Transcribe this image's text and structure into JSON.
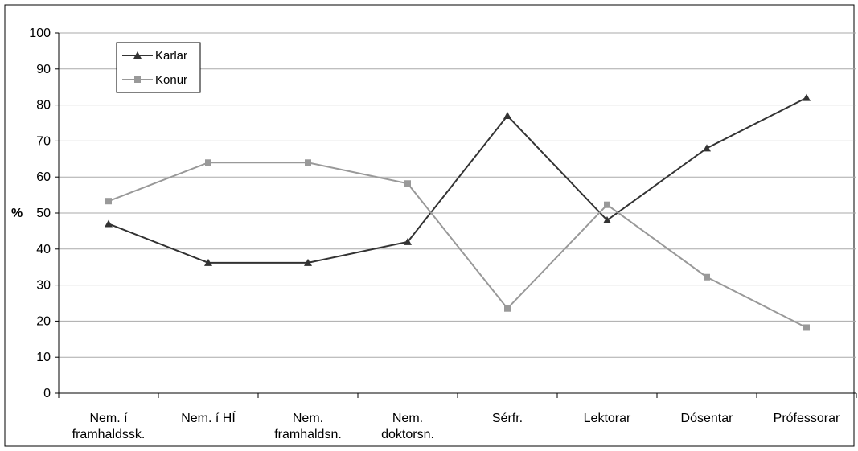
{
  "chart_data": {
    "type": "line",
    "title": "",
    "xlabel": "",
    "ylabel": "%",
    "ylim": [
      0,
      100
    ],
    "yticks": [
      0,
      10,
      20,
      30,
      40,
      50,
      60,
      70,
      80,
      90,
      100
    ],
    "grid": true,
    "legend_position": "top-left",
    "categories": [
      [
        "Nem. í",
        "framhaldssk."
      ],
      [
        "Nem. í HÍ"
      ],
      [
        "Nem.",
        "framhaldsn."
      ],
      [
        "Nem.",
        "doktorsn."
      ],
      [
        "Sérfr."
      ],
      [
        "Lektorar"
      ],
      [
        "Dósentar"
      ],
      [
        "Prófessorar"
      ]
    ],
    "series": [
      {
        "name": "Karlar",
        "values": [
          47,
          36.2,
          36.2,
          42,
          77,
          48,
          68,
          82
        ],
        "color": "#333333",
        "marker": "triangle"
      },
      {
        "name": "Konur",
        "values": [
          53.3,
          64,
          64,
          58.2,
          23.5,
          52.3,
          32.2,
          18.2
        ],
        "color": "#999999",
        "marker": "square"
      }
    ]
  }
}
